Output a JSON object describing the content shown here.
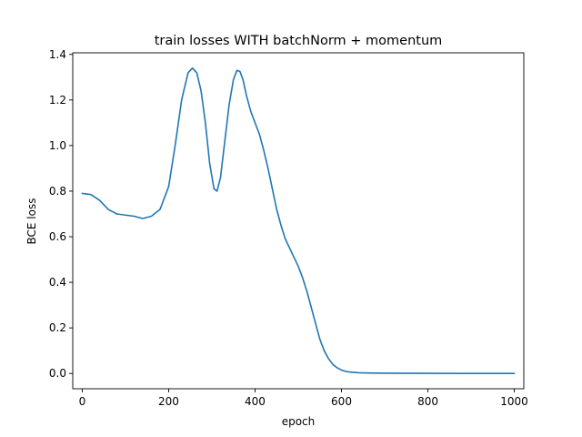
{
  "chart_data": {
    "type": "line",
    "title": "train losses WITH batchNorm + momentum",
    "xlabel": "epoch",
    "ylabel": "BCE loss",
    "xlim": [
      -22,
      1022
    ],
    "ylim": [
      -0.067,
      1.407
    ],
    "xticks": [
      0,
      200,
      400,
      600,
      800,
      1000
    ],
    "xtick_labels": [
      "0",
      "200",
      "400",
      "600",
      "800",
      "1000"
    ],
    "yticks": [
      0.0,
      0.2,
      0.4,
      0.6,
      0.8,
      1.0,
      1.2,
      1.4
    ],
    "ytick_labels": [
      "0.0",
      "0.2",
      "0.4",
      "0.6",
      "0.8",
      "1.0",
      "1.2",
      "1.4"
    ],
    "grid": false,
    "series": [
      {
        "color": "#1f77b4",
        "x": [
          0,
          20,
          40,
          60,
          80,
          100,
          120,
          140,
          160,
          180,
          200,
          215,
          230,
          245,
          255,
          265,
          275,
          285,
          295,
          305,
          312,
          320,
          330,
          340,
          350,
          358,
          365,
          372,
          380,
          390,
          400,
          410,
          420,
          430,
          440,
          450,
          460,
          470,
          480,
          490,
          500,
          510,
          520,
          530,
          540,
          550,
          560,
          570,
          580,
          590,
          600,
          610,
          620,
          640,
          660,
          700,
          800,
          900,
          1000
        ],
        "y": [
          0.79,
          0.785,
          0.76,
          0.72,
          0.7,
          0.695,
          0.69,
          0.68,
          0.69,
          0.72,
          0.82,
          1.0,
          1.2,
          1.32,
          1.34,
          1.32,
          1.24,
          1.1,
          0.92,
          0.81,
          0.8,
          0.86,
          1.02,
          1.18,
          1.29,
          1.33,
          1.325,
          1.29,
          1.22,
          1.15,
          1.1,
          1.05,
          0.98,
          0.9,
          0.81,
          0.72,
          0.65,
          0.59,
          0.55,
          0.51,
          0.47,
          0.42,
          0.36,
          0.29,
          0.22,
          0.15,
          0.1,
          0.065,
          0.04,
          0.025,
          0.015,
          0.009,
          0.006,
          0.003,
          0.002,
          0.001,
          0.0005,
          0.0003,
          0.0002
        ]
      }
    ]
  }
}
